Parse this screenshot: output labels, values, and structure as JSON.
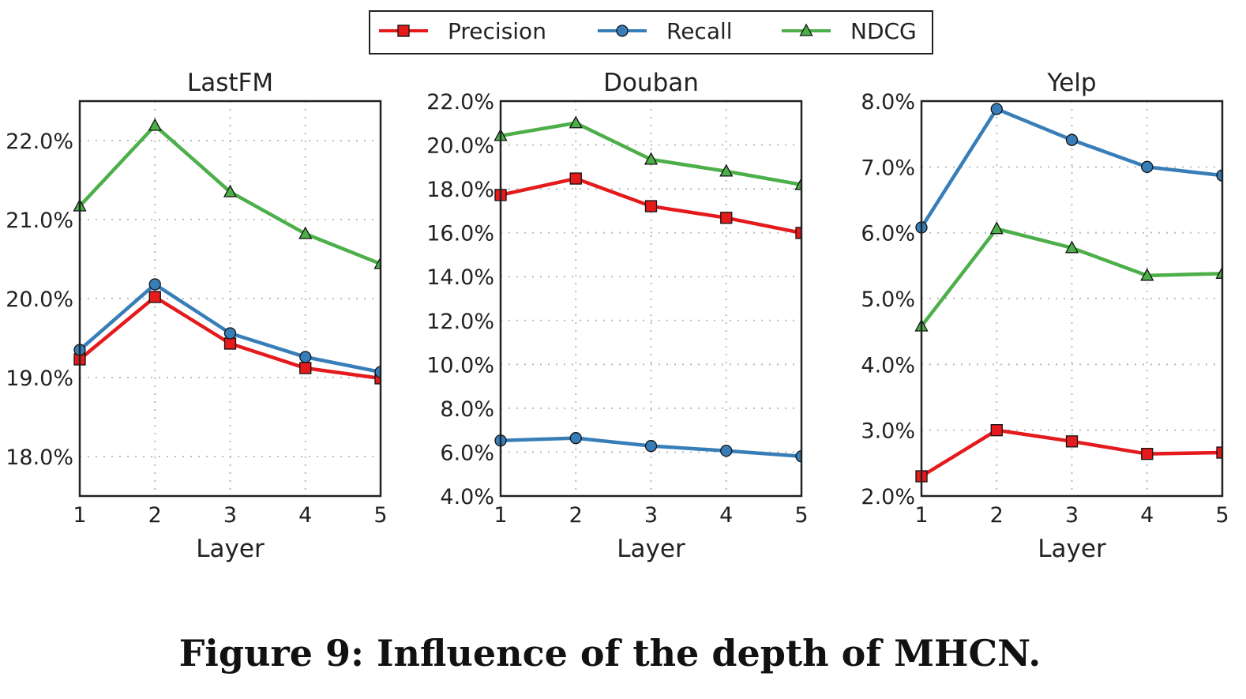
{
  "caption": "Figure 9: Influence of the depth of MHCN.",
  "legend": {
    "placement": "top-center",
    "entries": [
      {
        "name": "Precision",
        "color": "#e41a1c",
        "marker": "square"
      },
      {
        "name": "Recall",
        "color": "#377eb8",
        "marker": "circle"
      },
      {
        "name": "NDCG",
        "color": "#4daf4a",
        "marker": "triangle"
      }
    ]
  },
  "chart_data": [
    {
      "type": "line",
      "title": "LastFM",
      "xlabel": "Layer",
      "ylabel": "",
      "x": [
        1,
        2,
        3,
        4,
        5
      ],
      "xticks": [
        "1",
        "2",
        "3",
        "4",
        "5"
      ],
      "ylim": [
        17.5,
        22.5
      ],
      "yticks": [
        18.0,
        19.0,
        20.0,
        21.0,
        22.0
      ],
      "ytick_labels": [
        "18.0%",
        "19.0%",
        "20.0%",
        "21.0%",
        "22.0%"
      ],
      "grid": true,
      "series": [
        {
          "name": "Precision",
          "values": [
            19.23,
            20.02,
            19.43,
            19.12,
            18.99
          ]
        },
        {
          "name": "Recall",
          "values": [
            19.35,
            20.18,
            19.56,
            19.26,
            19.07
          ]
        },
        {
          "name": "NDCG",
          "values": [
            21.17,
            22.19,
            21.35,
            20.82,
            20.44
          ]
        }
      ]
    },
    {
      "type": "line",
      "title": "Douban",
      "xlabel": "Layer",
      "ylabel": "",
      "x": [
        1,
        2,
        3,
        4,
        5
      ],
      "xticks": [
        "1",
        "2",
        "3",
        "4",
        "5"
      ],
      "ylim": [
        4.0,
        22.0
      ],
      "yticks": [
        4,
        6,
        8,
        10,
        12,
        14,
        16,
        18,
        20,
        22
      ],
      "ytick_labels": [
        "4.0%",
        "6.0%",
        "8.0%",
        "10.0%",
        "12.0%",
        "14.0%",
        "16.0%",
        "18.0%",
        "20.0%",
        "22.0%"
      ],
      "grid": true,
      "series": [
        {
          "name": "Precision",
          "values": [
            17.72,
            18.47,
            17.21,
            16.68,
            15.99
          ]
        },
        {
          "name": "Recall",
          "values": [
            6.53,
            6.64,
            6.28,
            6.06,
            5.81
          ]
        },
        {
          "name": "NDCG",
          "values": [
            20.42,
            21.0,
            19.34,
            18.8,
            18.19
          ]
        }
      ]
    },
    {
      "type": "line",
      "title": "Yelp",
      "xlabel": "Layer",
      "ylabel": "",
      "x": [
        1,
        2,
        3,
        4,
        5
      ],
      "xticks": [
        "1",
        "2",
        "3",
        "4",
        "5"
      ],
      "ylim": [
        2.0,
        8.0
      ],
      "yticks": [
        2,
        3,
        4,
        5,
        6,
        7,
        8
      ],
      "ytick_labels": [
        "2.0%",
        "3.0%",
        "4.0%",
        "5.0%",
        "6.0%",
        "7.0%",
        "8.0%"
      ],
      "grid": true,
      "series": [
        {
          "name": "Precision",
          "values": [
            2.3,
            3.0,
            2.83,
            2.64,
            2.66
          ]
        },
        {
          "name": "Recall",
          "values": [
            6.08,
            7.88,
            7.41,
            7.0,
            6.87
          ]
        },
        {
          "name": "NDCG",
          "values": [
            4.58,
            6.06,
            5.77,
            5.35,
            5.38
          ]
        }
      ]
    }
  ]
}
